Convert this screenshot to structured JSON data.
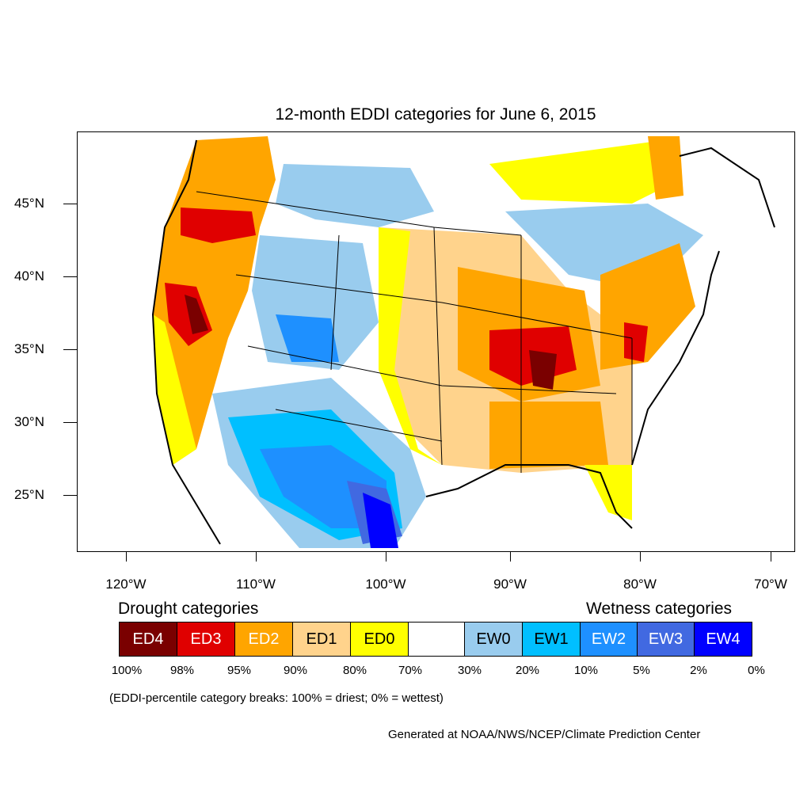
{
  "title": "12-month EDDI categories for June 6, 2015",
  "lat_labels": [
    "45°N",
    "40°N",
    "35°N",
    "30°N",
    "25°N"
  ],
  "lon_labels": [
    "120°W",
    "110°W",
    "100°W",
    "90°W",
    "80°W",
    "70°W"
  ],
  "legend": {
    "drought_heading": "Drought categories",
    "wetness_heading": "Wetness categories",
    "categories": [
      {
        "label": "ED4",
        "color": "#7a0000",
        "text_color": "#ffffff"
      },
      {
        "label": "ED3",
        "color": "#e00000",
        "text_color": "#ffffff"
      },
      {
        "label": "ED2",
        "color": "#ffa500",
        "text_color": "#ffffff"
      },
      {
        "label": "ED1",
        "color": "#ffd38c",
        "text_color": "#000000"
      },
      {
        "label": "ED0",
        "color": "#ffff00",
        "text_color": "#000000"
      },
      {
        "label": "",
        "color": "#ffffff",
        "text_color": "#000000"
      },
      {
        "label": "EW0",
        "color": "#99ccee",
        "text_color": "#000000"
      },
      {
        "label": "EW1",
        "color": "#00bfff",
        "text_color": "#000000"
      },
      {
        "label": "EW2",
        "color": "#1e90ff",
        "text_color": "#ffffff"
      },
      {
        "label": "EW3",
        "color": "#4169e1",
        "text_color": "#ffffff"
      },
      {
        "label": "EW4",
        "color": "#0000ff",
        "text_color": "#ffffff"
      }
    ],
    "percentiles": [
      "100%",
      "98%",
      "95%",
      "90%",
      "80%",
      "70%",
      "30%",
      "20%",
      "10%",
      "5%",
      "2%",
      "0%"
    ]
  },
  "note": "(EDDI-percentile category breaks: 100% = driest; 0% = wettest)",
  "credit": "Generated at NOAA/NWS/NCEP/Climate Prediction Center"
}
